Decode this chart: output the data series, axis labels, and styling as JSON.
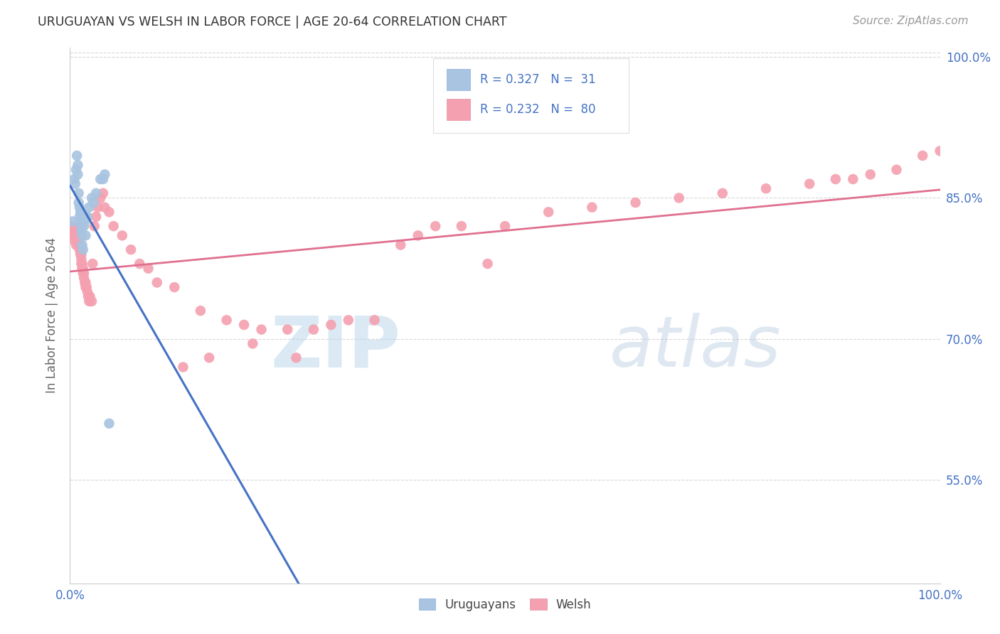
{
  "title": "URUGUAYAN VS WELSH IN LABOR FORCE | AGE 20-64 CORRELATION CHART",
  "source": "Source: ZipAtlas.com",
  "ylabel": "In Labor Force | Age 20-64",
  "yticks": [
    0.55,
    0.7,
    0.85,
    1.0
  ],
  "ytick_labels": [
    "55.0%",
    "70.0%",
    "85.0%",
    "100.0%"
  ],
  "legend_labels": [
    "Uruguayans",
    "Welsh"
  ],
  "uruguayan_R": 0.327,
  "uruguayan_N": 31,
  "welsh_R": 0.232,
  "welsh_N": 80,
  "uruguayan_color": "#a8c4e0",
  "welsh_color": "#f4a0b0",
  "uruguayan_line_color": "#4472c4",
  "welsh_line_color": "#e07090",
  "legend_text_color": "#4472c4",
  "uruguayan_x": [
    0.003,
    0.005,
    0.006,
    0.007,
    0.008,
    0.009,
    0.009,
    0.01,
    0.01,
    0.011,
    0.011,
    0.012,
    0.012,
    0.013,
    0.013,
    0.014,
    0.014,
    0.015,
    0.016,
    0.017,
    0.018,
    0.019,
    0.02,
    0.022,
    0.025,
    0.027,
    0.03,
    0.035,
    0.038,
    0.04,
    0.045
  ],
  "uruguayan_y": [
    0.825,
    0.87,
    0.865,
    0.88,
    0.895,
    0.885,
    0.875,
    0.855,
    0.845,
    0.84,
    0.83,
    0.835,
    0.825,
    0.82,
    0.815,
    0.81,
    0.8,
    0.795,
    0.82,
    0.825,
    0.81,
    0.83,
    0.83,
    0.84,
    0.85,
    0.845,
    0.855,
    0.87,
    0.87,
    0.875,
    0.61
  ],
  "welsh_x": [
    0.002,
    0.004,
    0.005,
    0.005,
    0.006,
    0.007,
    0.008,
    0.009,
    0.009,
    0.01,
    0.01,
    0.011,
    0.011,
    0.012,
    0.012,
    0.013,
    0.013,
    0.013,
    0.014,
    0.014,
    0.015,
    0.015,
    0.016,
    0.016,
    0.017,
    0.018,
    0.018,
    0.019,
    0.02,
    0.021,
    0.022,
    0.023,
    0.025,
    0.026,
    0.028,
    0.03,
    0.032,
    0.035,
    0.038,
    0.04,
    0.045,
    0.05,
    0.06,
    0.07,
    0.08,
    0.09,
    0.1,
    0.12,
    0.15,
    0.18,
    0.2,
    0.22,
    0.25,
    0.28,
    0.3,
    0.32,
    0.35,
    0.38,
    0.4,
    0.42,
    0.45,
    0.48,
    0.5,
    0.55,
    0.6,
    0.65,
    0.7,
    0.75,
    0.8,
    0.85,
    0.88,
    0.9,
    0.92,
    0.95,
    0.98,
    1.0,
    0.13,
    0.16,
    0.21,
    0.26
  ],
  "welsh_y": [
    0.82,
    0.81,
    0.815,
    0.805,
    0.81,
    0.8,
    0.815,
    0.82,
    0.815,
    0.81,
    0.805,
    0.8,
    0.795,
    0.795,
    0.79,
    0.79,
    0.785,
    0.78,
    0.78,
    0.775,
    0.775,
    0.77,
    0.77,
    0.765,
    0.76,
    0.755,
    0.76,
    0.755,
    0.75,
    0.745,
    0.74,
    0.745,
    0.74,
    0.78,
    0.82,
    0.83,
    0.84,
    0.85,
    0.855,
    0.84,
    0.835,
    0.82,
    0.81,
    0.795,
    0.78,
    0.775,
    0.76,
    0.755,
    0.73,
    0.72,
    0.715,
    0.71,
    0.71,
    0.71,
    0.715,
    0.72,
    0.72,
    0.8,
    0.81,
    0.82,
    0.82,
    0.78,
    0.82,
    0.835,
    0.84,
    0.845,
    0.85,
    0.855,
    0.86,
    0.865,
    0.87,
    0.87,
    0.875,
    0.88,
    0.895,
    0.9,
    0.67,
    0.68,
    0.695,
    0.68
  ],
  "watermark_zip": "ZIP",
  "watermark_atlas": "atlas",
  "background_color": "#ffffff",
  "grid_color": "#d8d8d8"
}
